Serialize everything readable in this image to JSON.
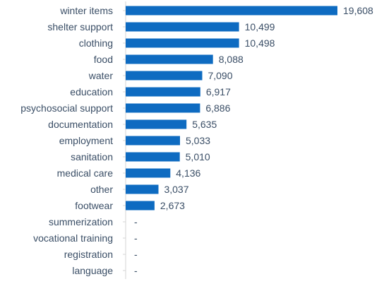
{
  "chart_data": {
    "type": "bar",
    "orientation": "horizontal",
    "title": "",
    "xlabel": "",
    "ylabel": "",
    "xlim": [
      0,
      20000
    ],
    "grid": false,
    "legend": "none",
    "bar_color": "#0e6bc1",
    "categories": [
      "winter items",
      "shelter support",
      "clothing",
      "food",
      "water",
      "education",
      "psychosocial support",
      "documentation",
      "employment",
      "sanitation",
      "medical care",
      "other",
      "footwear",
      "summerization",
      "vocational training",
      "registration",
      "language"
    ],
    "values": [
      19608,
      10499,
      10498,
      8088,
      7090,
      6917,
      6886,
      5635,
      5033,
      5010,
      4136,
      3037,
      2673,
      0,
      0,
      0,
      0
    ],
    "data_labels": [
      "19,608",
      "10,499",
      "10,498",
      "8,088",
      "7,090",
      "6,917",
      "6,886",
      "5,635",
      "5,033",
      "5,010",
      "4,136",
      "3,037",
      "2,673",
      "-",
      "-",
      "-",
      "-"
    ]
  }
}
